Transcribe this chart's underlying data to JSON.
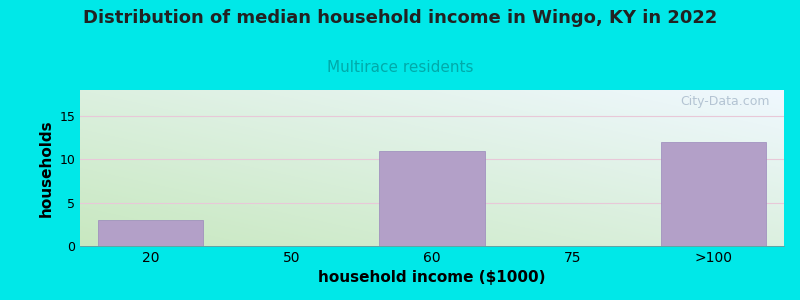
{
  "title": "Distribution of median household income in Wingo, KY in 2022",
  "subtitle": "Multirace residents",
  "categories": [
    "20",
    "50",
    "60",
    "75",
    ">100"
  ],
  "values": [
    3,
    0,
    11,
    0,
    12
  ],
  "bar_color": "#b3a0c8",
  "bar_edge_color": "#9a88bb",
  "xlabel": "household income ($1000)",
  "ylabel": "households",
  "ylim": [
    0,
    18
  ],
  "yticks": [
    0,
    5,
    10,
    15
  ],
  "background_outer": "#00e8e8",
  "background_inner_topleft": "#daecd4",
  "background_inner_topright": "#e8f0f5",
  "background_inner_bottomleft": "#c8e8c0",
  "background_inner_bottomright": "#f0f8ff",
  "title_fontsize": 13,
  "subtitle_fontsize": 11,
  "subtitle_color": "#00aaaa",
  "grid_color": "#e8c8d8",
  "watermark": "City-Data.com",
  "watermark_color": "#aabbcc"
}
